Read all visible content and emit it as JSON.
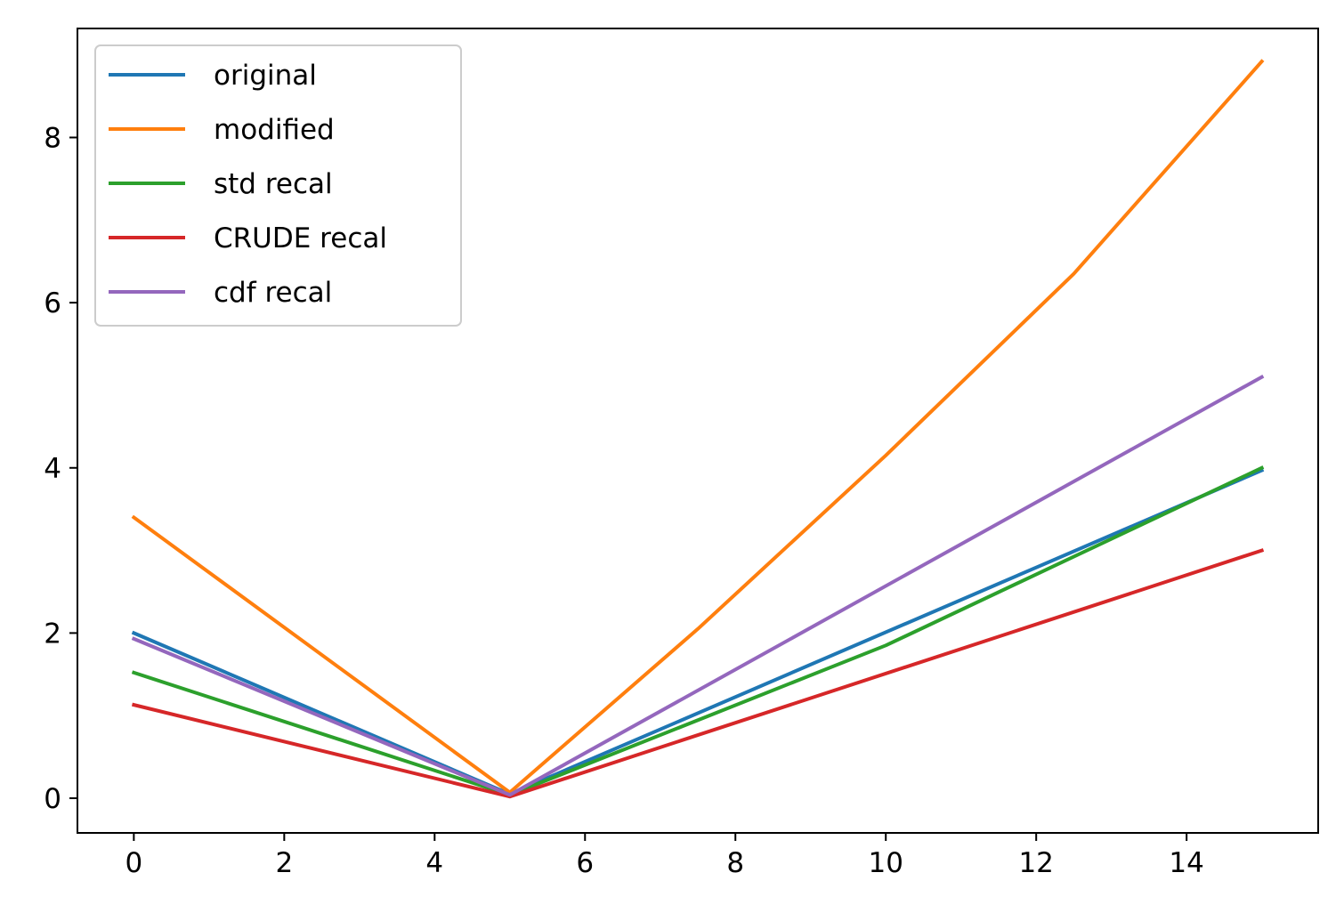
{
  "chart_data": {
    "type": "line",
    "title": "",
    "xlabel": "",
    "ylabel": "",
    "x": [
      0,
      5,
      15
    ],
    "xlim": [
      -0.75,
      15.75
    ],
    "ylim": [
      -0.42,
      9.32
    ],
    "xticks": [
      0,
      2,
      4,
      6,
      8,
      10,
      12,
      14
    ],
    "yticks": [
      0,
      2,
      4,
      6,
      8
    ],
    "grid": false,
    "legend_position": "top-left",
    "series": [
      {
        "name": "original",
        "color": "#1f77b4",
        "points": [
          [
            0,
            2.0
          ],
          [
            5,
            0.05
          ],
          [
            15,
            3.97
          ]
        ]
      },
      {
        "name": "modified",
        "color": "#ff7f0e",
        "points": [
          [
            0,
            3.4
          ],
          [
            5,
            0.07
          ],
          [
            7.5,
            2.05
          ],
          [
            10,
            4.15
          ],
          [
            12.5,
            6.35
          ],
          [
            15,
            8.92
          ]
        ]
      },
      {
        "name": "std recal",
        "color": "#2ca02c",
        "points": [
          [
            0,
            1.52
          ],
          [
            5,
            0.04
          ],
          [
            10,
            1.85
          ],
          [
            15,
            4.0
          ]
        ]
      },
      {
        "name": "CRUDE recal",
        "color": "#d62728",
        "points": [
          [
            0,
            1.13
          ],
          [
            5,
            0.02
          ],
          [
            15,
            3.0
          ]
        ]
      },
      {
        "name": "cdf recal",
        "color": "#9467bd",
        "points": [
          [
            0,
            1.93
          ],
          [
            5,
            0.04
          ],
          [
            15,
            5.1
          ]
        ]
      }
    ]
  }
}
